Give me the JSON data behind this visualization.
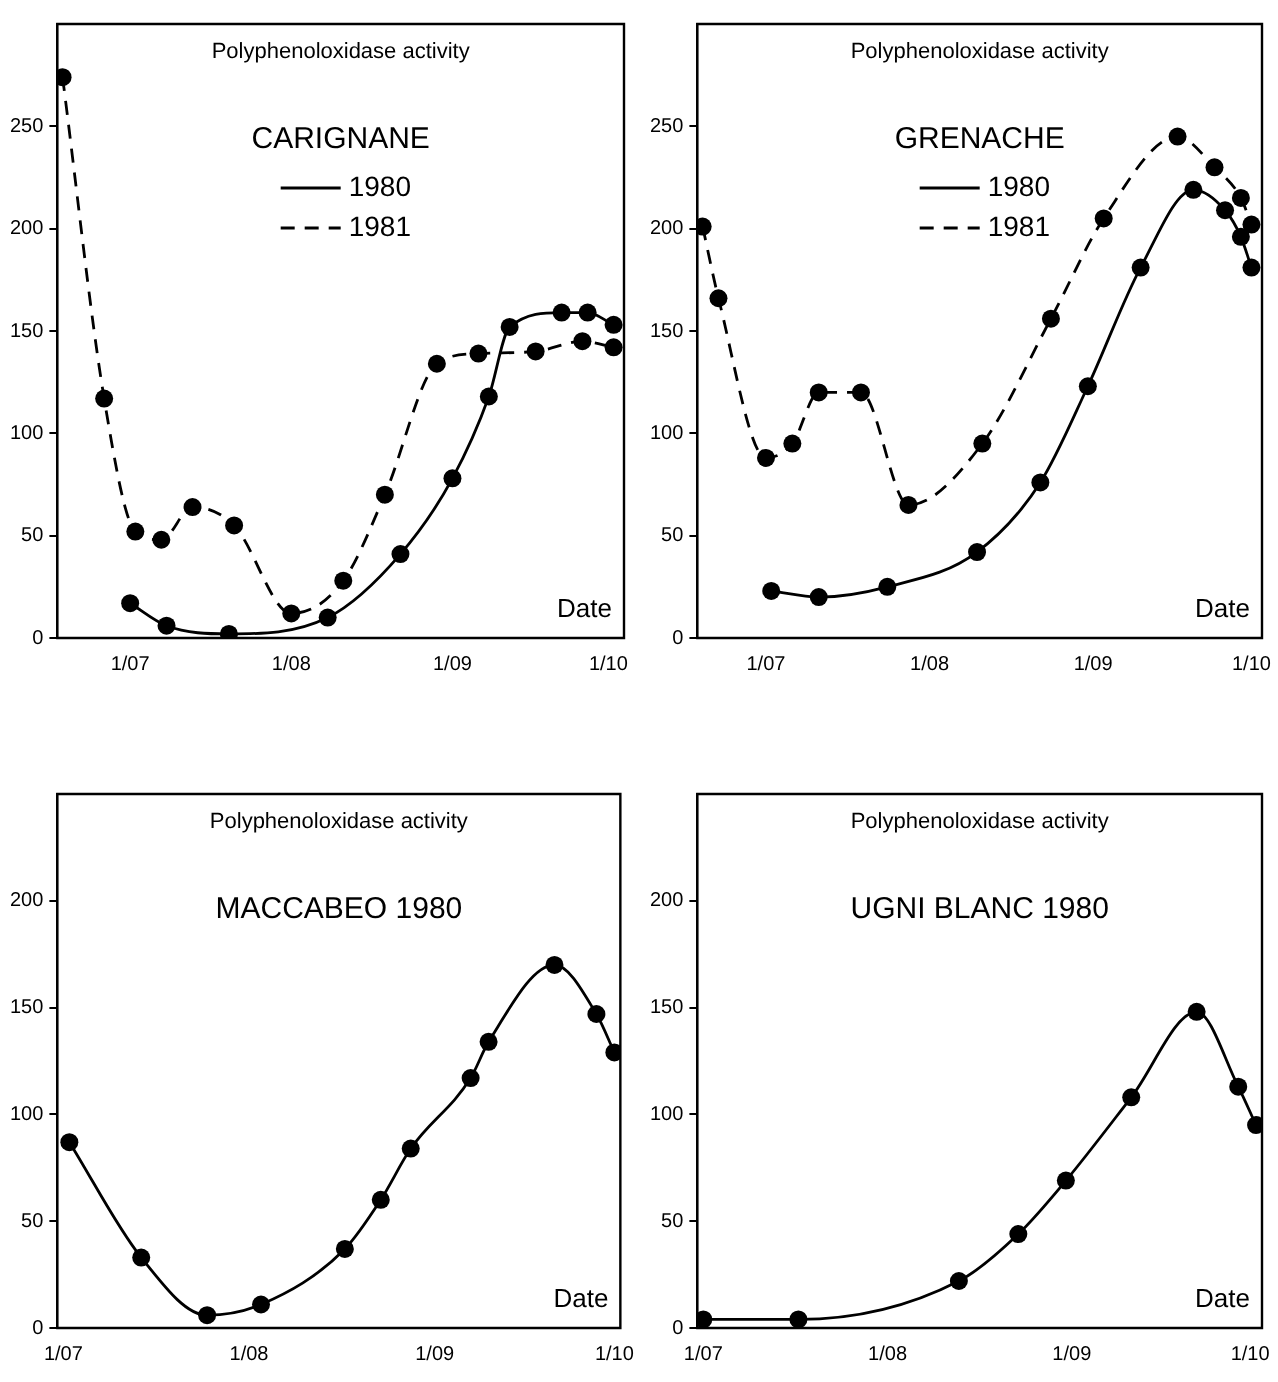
{
  "chart_data": [
    {
      "type": "line",
      "title": "CARIGNANE",
      "ylabel": "Polyphenoloxidase activity",
      "xlabel": "Date",
      "xlim": [
        "--06-17",
        "--10-04"
      ],
      "xticks": [
        {
          "value": "--07-01",
          "label": "1/07"
        },
        {
          "value": "--08-01",
          "label": "1/08"
        },
        {
          "value": "--09-01",
          "label": "1/09"
        },
        {
          "value": "--10-01",
          "label": "1/10"
        }
      ],
      "ylim": [
        0,
        300
      ],
      "yticks": [
        0,
        50,
        100,
        150,
        200,
        250
      ],
      "grid": false,
      "legend": "top",
      "marker": "circle",
      "series": [
        {
          "name": "1980",
          "color": "#000000",
          "line_style": "solid",
          "x": [
            "--07-01",
            "--07-08",
            "--07-20",
            "--08-08",
            "--08-22",
            "--09-01",
            "--09-08",
            "--09-12",
            "--09-22",
            "--09-27",
            "--10-02"
          ],
          "values": [
            17,
            6,
            2,
            10,
            41,
            78,
            118,
            152,
            159,
            159,
            153
          ]
        },
        {
          "name": "1981",
          "color": "#000000",
          "line_style": "dashed",
          "x": [
            "--06-18",
            "--06-26",
            "--07-02",
            "--07-07",
            "--07-13",
            "--07-21",
            "--08-01",
            "--08-11",
            "--08-19",
            "--08-29",
            "--09-06",
            "--09-17",
            "--09-26",
            "--10-02"
          ],
          "values": [
            274,
            117,
            52,
            48,
            64,
            55,
            12,
            28,
            70,
            134,
            139,
            140,
            145,
            142
          ]
        }
      ]
    },
    {
      "type": "line",
      "title": "GRENACHE",
      "ylabel": "Polyphenoloxidase activity",
      "xlabel": "Date",
      "xlim": [
        "--06-18",
        "--10-03"
      ],
      "xticks": [
        {
          "value": "--07-01",
          "label": "1/07"
        },
        {
          "value": "--08-01",
          "label": "1/08"
        },
        {
          "value": "--09-01",
          "label": "1/09"
        },
        {
          "value": "--10-01",
          "label": "1/10"
        }
      ],
      "ylim": [
        0,
        300
      ],
      "yticks": [
        0,
        50,
        100,
        150,
        200,
        250
      ],
      "grid": false,
      "legend": "top",
      "marker": "circle",
      "series": [
        {
          "name": "1980",
          "color": "#000000",
          "line_style": "solid",
          "x": [
            "--07-02",
            "--07-11",
            "--07-24",
            "--08-10",
            "--08-22",
            "--08-31",
            "--09-10",
            "--09-20",
            "--09-26",
            "--09-29",
            "--10-01"
          ],
          "values": [
            23,
            20,
            25,
            42,
            76,
            123,
            181,
            219,
            209,
            196,
            181
          ]
        },
        {
          "name": "1981",
          "color": "#000000",
          "line_style": "dashed",
          "x": [
            "--06-19",
            "--06-22",
            "--07-01",
            "--07-06",
            "--07-11",
            "--07-19",
            "--07-28",
            "--08-11",
            "--08-24",
            "--09-03",
            "--09-17",
            "--09-24",
            "--09-29",
            "--10-01"
          ],
          "values": [
            201,
            166,
            88,
            95,
            120,
            120,
            65,
            95,
            156,
            205,
            245,
            230,
            215,
            202
          ]
        }
      ]
    },
    {
      "type": "line",
      "title": "MACCABEO 1980",
      "ylabel": "Polyphenoloxidase activity",
      "xlabel": "Date",
      "xlim": [
        "--06-30",
        "--10-02"
      ],
      "xticks": [
        {
          "value": "--07-01",
          "label": "1/07"
        },
        {
          "value": "--08-01",
          "label": "1/08"
        },
        {
          "value": "--09-01",
          "label": "1/09"
        },
        {
          "value": "--10-01",
          "label": "1/10"
        }
      ],
      "ylim": [
        0,
        250
      ],
      "yticks": [
        0,
        50,
        100,
        150,
        200
      ],
      "grid": false,
      "marker": "circle",
      "series": [
        {
          "color": "#000000",
          "line_style": "solid",
          "x": [
            "--07-02",
            "--07-14",
            "--07-25",
            "--08-03",
            "--08-17",
            "--08-23",
            "--08-28",
            "--09-07",
            "--09-10",
            "--09-21",
            "--09-28",
            "--10-01"
          ],
          "values": [
            87,
            33,
            6,
            11,
            37,
            60,
            84,
            117,
            134,
            170,
            147,
            129
          ]
        }
      ]
    },
    {
      "type": "line",
      "title": "UGNI BLANC 1980",
      "ylabel": "Polyphenoloxidase activity",
      "xlabel": "Date",
      "xlim": [
        "--06-30",
        "--10-03"
      ],
      "xticks": [
        {
          "value": "--07-01",
          "label": "1/07"
        },
        {
          "value": "--08-01",
          "label": "1/08"
        },
        {
          "value": "--09-01",
          "label": "1/09"
        },
        {
          "value": "--10-01",
          "label": "1/10"
        }
      ],
      "ylim": [
        0,
        250
      ],
      "yticks": [
        0,
        50,
        100,
        150,
        200
      ],
      "grid": false,
      "marker": "circle",
      "series": [
        {
          "color": "#000000",
          "line_style": "solid",
          "x": [
            "--07-01",
            "--07-17",
            "--08-13",
            "--08-23",
            "--08-31",
            "--09-11",
            "--09-22",
            "--09-29",
            "--10-02"
          ],
          "values": [
            4,
            4,
            22,
            44,
            69,
            108,
            148,
            113,
            95
          ]
        }
      ]
    }
  ]
}
